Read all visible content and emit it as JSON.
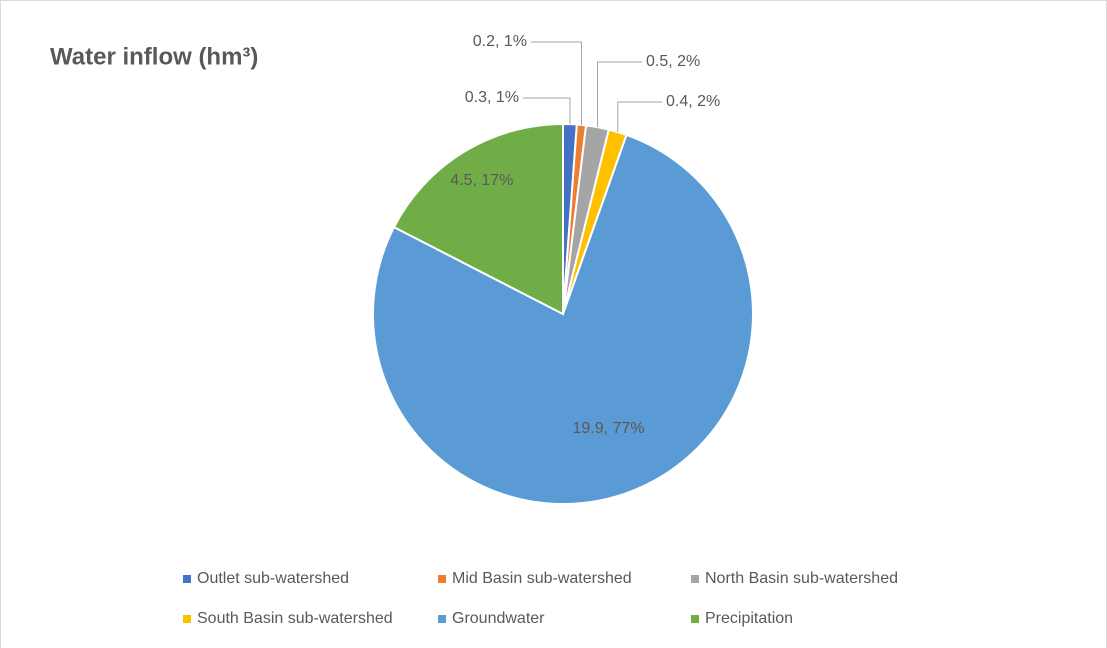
{
  "chart_data": {
    "type": "pie",
    "title": "Water inflow (hm³)",
    "categories": [
      "Outlet sub-watershed",
      "Mid Basin sub-watershed",
      "North Basin sub-watershed",
      "South Basin sub-watershed",
      "Groundwater",
      "Precipitation"
    ],
    "values": [
      0.3,
      0.2,
      0.5,
      0.4,
      19.9,
      4.5
    ],
    "value_labels": [
      "0.3, 1%",
      "0.2, 1%",
      "0.5, 2%",
      "0.4, 2%",
      "19.9, 77%",
      "4.5, 17%"
    ],
    "colors": [
      "#4472c4",
      "#ed7d31",
      "#a5a5a5",
      "#ffc000",
      "#5b9bd5",
      "#70ad47"
    ],
    "legend": "bottom"
  }
}
